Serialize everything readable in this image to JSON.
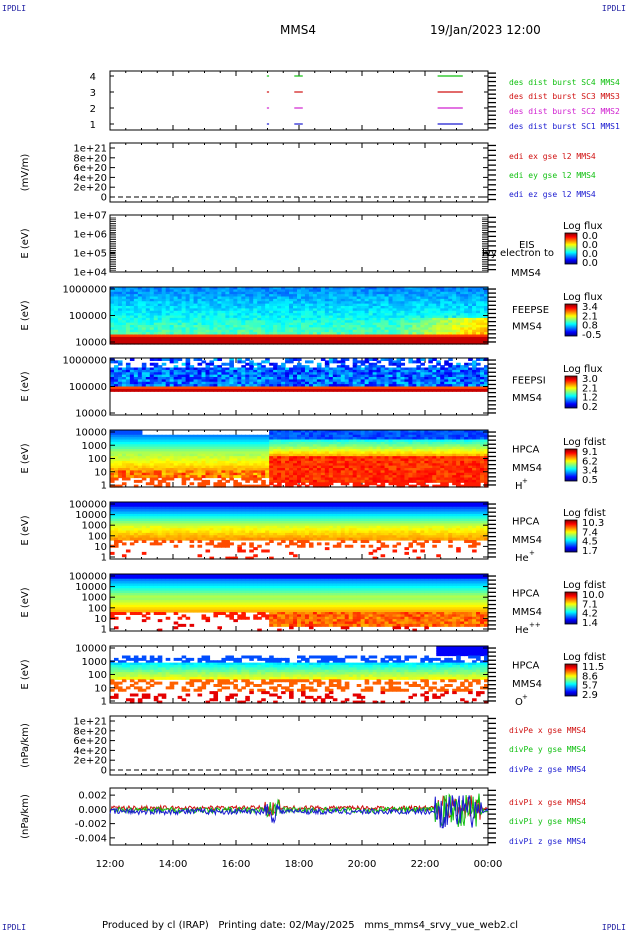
{
  "corners": {
    "top_left": "IPDLI",
    "top_right": "IPDLI",
    "bottom_left": "IPDLI",
    "bottom_right": "IPDLI"
  },
  "header": {
    "spacecraft": "MMS4",
    "datetime": "19/Jan/2023 12:00"
  },
  "footer": {
    "text": "Produced by cl (IRAP)   Printing date: 02/May/2025   mms_mms4_srvy_vue_web2.cl"
  },
  "chart_data": {
    "type": "multi-panel-timeseries",
    "x_axis": {
      "ticks": [
        "12:00",
        "14:00",
        "16:00",
        "18:00",
        "20:00",
        "22:00",
        "00:00"
      ],
      "range_hours": [
        12,
        24
      ]
    },
    "panels": [
      {
        "id": "burst",
        "type": "timeline",
        "yticks": [
          "4",
          "3",
          "2",
          "1"
        ],
        "legend": [
          {
            "label": "des dist burst SC1 MMS1",
            "color": "#1a1ad0",
            "level": 1
          },
          {
            "label": "des dist burst SC2 MMS2",
            "color": "#d020d0",
            "level": 2
          },
          {
            "label": "des dist burst SC3 MMS3",
            "color": "#d01010",
            "level": 3
          },
          {
            "label": "des dist burst SC4 MMS4",
            "color": "#10c010",
            "level": 4
          }
        ],
        "intervals_hours": [
          [
            16.98,
            17.05
          ],
          [
            17.85,
            18.12
          ],
          [
            22.4,
            23.2
          ]
        ]
      },
      {
        "id": "edi",
        "type": "line",
        "ylabel": "(mV/m)",
        "yticks": [
          "1e+21",
          "8e+20",
          "6e+20",
          "4e+20",
          "2e+20",
          "0"
        ],
        "legend": [
          {
            "label": "edi ex gse l2 MMS4",
            "color": "#d01010"
          },
          {
            "label": "edi ey gse l2 MMS4",
            "color": "#10c010"
          },
          {
            "label": "edi ez gse l2 MMS4",
            "color": "#1a1ad0"
          }
        ]
      },
      {
        "id": "eis",
        "type": "spectrogram",
        "ylabel": "E (eV)",
        "yticks": [
          "1e+07",
          "1e+06",
          "1e+05",
          "1e+04"
        ],
        "labels": [
          "EIS",
          "MMS4"
        ],
        "overlay": "Ivy electron to",
        "colorbar": {
          "title": "Log flux",
          "ticks": [
            "0.0",
            "0.0",
            "0.0",
            "0.0"
          ]
        }
      },
      {
        "id": "feepse",
        "type": "spectrogram",
        "ylabel": "E (eV)",
        "yticks": [
          "1000000",
          "100000",
          "10000"
        ],
        "labels": [
          "FEEPSE",
          "MMS4"
        ],
        "colorbar": {
          "title": "Log flux",
          "ticks": [
            "3.4",
            "2.1",
            "0.8",
            "-0.5"
          ]
        }
      },
      {
        "id": "feepsi",
        "type": "spectrogram",
        "ylabel": "E (eV)",
        "yticks": [
          "1000000",
          "100000",
          "10000"
        ],
        "labels": [
          "FEEPSI",
          "MMS4"
        ],
        "colorbar": {
          "title": "Log flux",
          "ticks": [
            "3.0",
            "2.1",
            "1.2",
            "0.2"
          ]
        }
      },
      {
        "id": "hpca_h",
        "type": "spectrogram",
        "ylabel": "E (eV)",
        "yticks": [
          "10000",
          "1000",
          "100",
          "10",
          "1"
        ],
        "labels": [
          "HPCA",
          "MMS4"
        ],
        "species": "H",
        "charge": "+",
        "colorbar": {
          "title": "Log fdist",
          "ticks": [
            "9.1",
            "6.2",
            "3.4",
            "0.5"
          ]
        }
      },
      {
        "id": "hpca_he",
        "type": "spectrogram",
        "ylabel": "E (eV)",
        "yticks": [
          "100000",
          "10000",
          "1000",
          "100",
          "10",
          "1"
        ],
        "labels": [
          "HPCA",
          "MMS4"
        ],
        "species": "He",
        "charge": "+",
        "colorbar": {
          "title": "Log fdist",
          "ticks": [
            "10.3",
            "7.4",
            "4.5",
            "1.7"
          ]
        }
      },
      {
        "id": "hpca_hepp",
        "type": "spectrogram",
        "ylabel": "E (eV)",
        "yticks": [
          "100000",
          "10000",
          "1000",
          "100",
          "10",
          "1"
        ],
        "labels": [
          "HPCA",
          "MMS4"
        ],
        "species": "He",
        "charge": "++",
        "colorbar": {
          "title": "Log fdist",
          "ticks": [
            "10.0",
            "7.1",
            "4.2",
            "1.4"
          ]
        }
      },
      {
        "id": "hpca_o",
        "type": "spectrogram",
        "ylabel": "E (eV)",
        "yticks": [
          "10000",
          "1000",
          "100",
          "10",
          "1"
        ],
        "labels": [
          "HPCA",
          "MMS4"
        ],
        "species": "O",
        "charge": "+",
        "colorbar": {
          "title": "Log fdist",
          "ticks": [
            "11.5",
            "8.6",
            "5.7",
            "2.9"
          ]
        }
      },
      {
        "id": "divpe",
        "type": "line",
        "ylabel": "(nPa/km)",
        "yticks": [
          "1e+21",
          "8e+20",
          "6e+20",
          "4e+20",
          "2e+20",
          "0"
        ],
        "legend": [
          {
            "label": "divPe x gse MMS4",
            "color": "#d01010"
          },
          {
            "label": "divPe y gse MMS4",
            "color": "#10c010"
          },
          {
            "label": "divPe z gse MMS4",
            "color": "#1a1ad0"
          }
        ]
      },
      {
        "id": "divpi",
        "type": "line",
        "ylabel": "(nPa/km)",
        "yticks": [
          "0.002",
          "0.000",
          "-0.002",
          "-0.004"
        ],
        "ylim": [
          -0.005,
          0.003
        ],
        "legend": [
          {
            "label": "divPi x gse MMS4",
            "color": "#d01010"
          },
          {
            "label": "divPi y gse MMS4",
            "color": "#10c010"
          },
          {
            "label": "divPi z gse MMS4",
            "color": "#1a1ad0"
          }
        ]
      }
    ]
  }
}
